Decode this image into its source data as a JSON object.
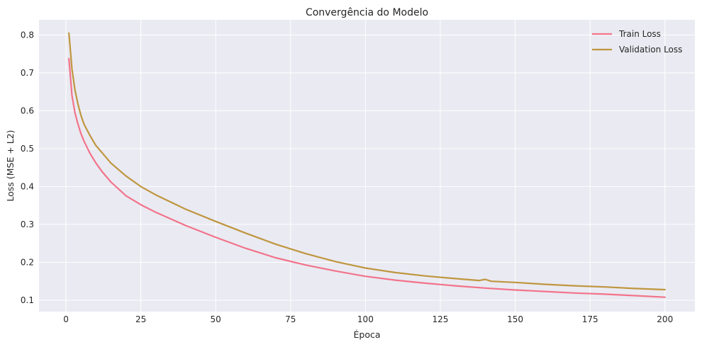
{
  "chart_data": {
    "type": "line",
    "title": "Convergência do Modelo",
    "xlabel": "Época",
    "ylabel": "Loss (MSE + L2)",
    "xlim": [
      -9,
      210
    ],
    "ylim": [
      0.07,
      0.84
    ],
    "xticks": [
      0,
      25,
      50,
      75,
      100,
      125,
      150,
      175,
      200
    ],
    "yticks": [
      0.1,
      0.2,
      0.3,
      0.4,
      0.5,
      0.6,
      0.7,
      0.8
    ],
    "grid": true,
    "legend_position": "top-right",
    "series": [
      {
        "name": "Train Loss",
        "color": "#f2738a",
        "x": [
          1,
          2,
          3,
          4,
          5,
          6,
          8,
          10,
          12,
          15,
          20,
          25,
          30,
          40,
          50,
          60,
          70,
          80,
          90,
          100,
          110,
          120,
          130,
          140,
          150,
          160,
          170,
          180,
          190,
          200
        ],
        "y": [
          0.738,
          0.64,
          0.595,
          0.565,
          0.54,
          0.52,
          0.488,
          0.462,
          0.44,
          0.412,
          0.376,
          0.352,
          0.332,
          0.297,
          0.266,
          0.237,
          0.212,
          0.193,
          0.177,
          0.163,
          0.153,
          0.145,
          0.138,
          0.132,
          0.127,
          0.123,
          0.119,
          0.116,
          0.112,
          0.108
        ]
      },
      {
        "name": "Validation Loss",
        "color": "#bf963f",
        "x": [
          1,
          2,
          3,
          4,
          5,
          6,
          8,
          10,
          12,
          15,
          20,
          25,
          30,
          40,
          50,
          60,
          70,
          80,
          90,
          100,
          110,
          120,
          130,
          138,
          140,
          142,
          150,
          160,
          170,
          180,
          190,
          200
        ],
        "y": [
          0.805,
          0.71,
          0.655,
          0.618,
          0.588,
          0.565,
          0.535,
          0.508,
          0.49,
          0.462,
          0.428,
          0.4,
          0.378,
          0.34,
          0.308,
          0.277,
          0.248,
          0.223,
          0.202,
          0.185,
          0.173,
          0.164,
          0.157,
          0.152,
          0.155,
          0.15,
          0.147,
          0.142,
          0.138,
          0.135,
          0.131,
          0.128
        ]
      }
    ]
  }
}
